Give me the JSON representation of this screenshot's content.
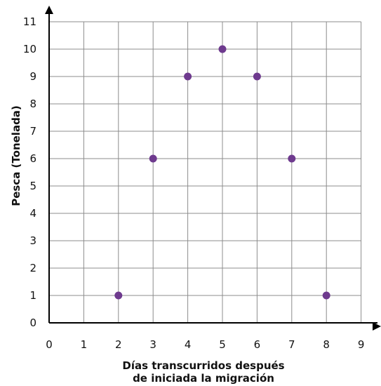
{
  "chart_data": {
    "type": "scatter",
    "title": "",
    "xlabel_lines": [
      "Días transcurridos después",
      "de iniciada la migración"
    ],
    "ylabel": "Pesca (Tonelada)",
    "xlim": [
      0,
      9
    ],
    "ylim": [
      0,
      11
    ],
    "x_ticks": [
      "0",
      "1",
      "2",
      "3",
      "4",
      "5",
      "6",
      "7",
      "8",
      "9"
    ],
    "y_ticks": [
      "0",
      "1",
      "2",
      "3",
      "4",
      "5",
      "6",
      "7",
      "8",
      "9",
      "10",
      "11"
    ],
    "grid": true,
    "points": [
      {
        "x": 2,
        "y": 1
      },
      {
        "x": 3,
        "y": 6
      },
      {
        "x": 4,
        "y": 9
      },
      {
        "x": 5,
        "y": 10
      },
      {
        "x": 6,
        "y": 9
      },
      {
        "x": 7,
        "y": 6
      },
      {
        "x": 8,
        "y": 1
      }
    ],
    "marker_color": "#6e3a8e",
    "grid_color": "#8c8c8c",
    "axis_color": "#000000"
  }
}
